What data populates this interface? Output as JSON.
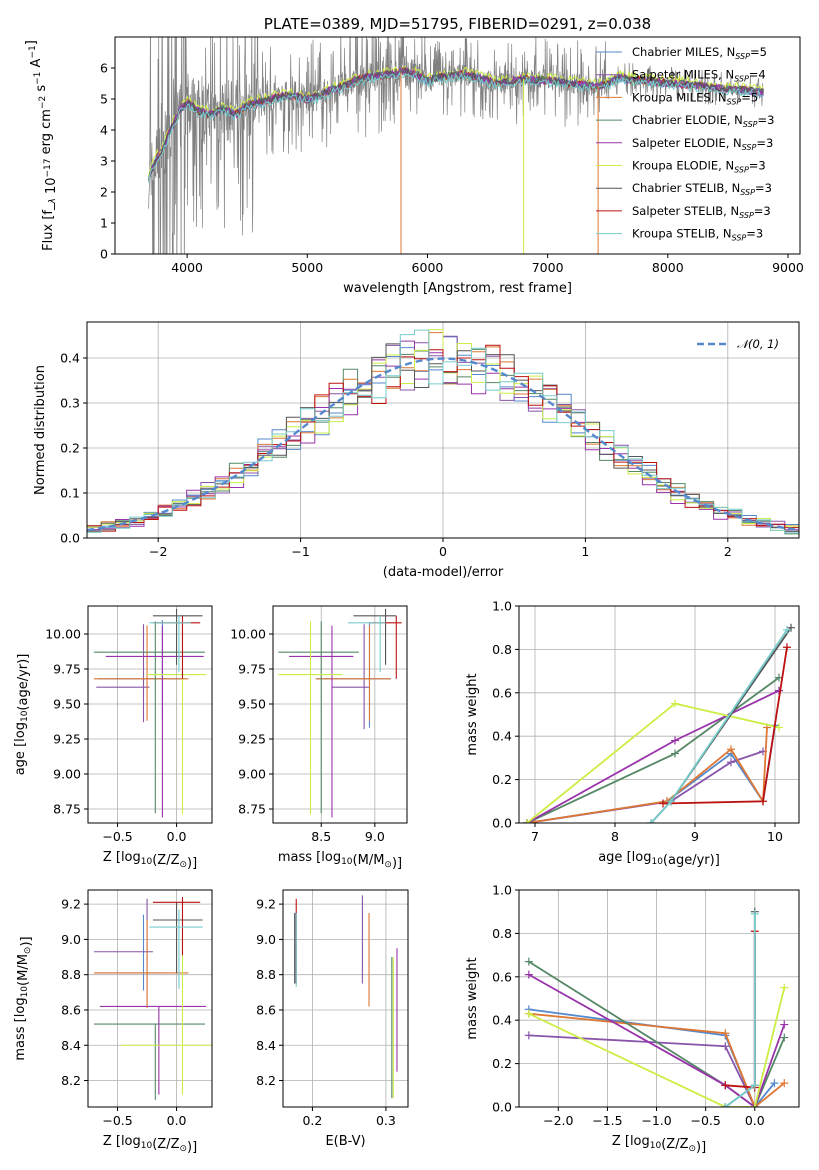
{
  "colors": [
    "#5588cc",
    "#8855aa",
    "#dd7733",
    "#558866",
    "#9933aa",
    "#ccee44",
    "#555555",
    "#bb1111",
    "#77cccc"
  ],
  "model_names": [
    "Chabrier MILES, N_SSP=5",
    "Salpeter MILES, N_SSP=4",
    "Kroupa MILES, N_SSP=5",
    "Chabrier ELODIE, N_SSP=3",
    "Salpeter ELODIE, N_SSP=3",
    "Kroupa ELODIE, N_SSP=3",
    "Chabrier STELIB, N_SSP=3",
    "Salpeter STELIB, N_SSP=3",
    "Kroupa STELIB, N_SSP=3"
  ],
  "chart_data": [
    {
      "id": "spectrum",
      "type": "line",
      "title": "PLATE=0389, MJD=51795, FIBERID=0291, z=0.038",
      "xlabel": "wavelength [Angstrom, rest frame]",
      "ylabel": "Flux [f_λ 10^-17 erg cm^-2 s^-1 A^-1]",
      "xlim": [
        3400,
        9100
      ],
      "ylim": [
        0,
        7
      ],
      "xticks": [
        4000,
        5000,
        6000,
        7000,
        8000,
        9000
      ],
      "yticks": [
        0,
        1,
        2,
        3,
        4,
        5,
        6
      ],
      "grid": false,
      "legend": "top-right",
      "data_color": "#808080",
      "continuum": {
        "x": [
          3680,
          3750,
          3800,
          3850,
          3900,
          3950,
          4000,
          4100,
          4200,
          4300,
          4400,
          4500,
          4600,
          4700,
          4800,
          4900,
          5000,
          5100,
          5200,
          5300,
          5400,
          5500,
          5600,
          5700,
          5800,
          5900,
          6000,
          6100,
          6200,
          6300,
          6400,
          6500,
          6600,
          6700,
          6800,
          6900,
          7000,
          7100,
          7200,
          7300,
          7400,
          7500,
          7600,
          7700,
          7800,
          7900,
          8000,
          8100,
          8200,
          8300,
          8400,
          8500,
          8600,
          8700,
          8800
        ],
        "y": [
          2.5,
          3.1,
          3.4,
          3.9,
          4.3,
          4.7,
          4.9,
          4.6,
          4.5,
          4.7,
          4.5,
          4.8,
          4.9,
          5.0,
          5.1,
          5.1,
          5.0,
          5.1,
          5.3,
          5.4,
          5.6,
          5.7,
          5.75,
          5.8,
          5.9,
          5.8,
          5.6,
          5.7,
          5.75,
          5.8,
          5.7,
          5.6,
          5.5,
          5.6,
          5.65,
          5.6,
          5.6,
          5.55,
          5.5,
          5.45,
          5.4,
          5.5,
          5.7,
          5.6,
          5.6,
          5.55,
          5.5,
          5.5,
          5.45,
          5.4,
          5.35,
          5.3,
          5.3,
          5.25,
          5.2
        ]
      }
    },
    {
      "id": "residuals",
      "type": "line",
      "xlabel": "(data-model)/error",
      "ylabel": "Normed distribution",
      "xlim": [
        -2.5,
        2.5
      ],
      "ylim": [
        0,
        0.48
      ],
      "xticks": [
        -2,
        -1,
        0,
        1,
        2
      ],
      "yticks": [
        0.0,
        0.1,
        0.2,
        0.3,
        0.4
      ],
      "grid": true,
      "legend": "top-right",
      "reference": {
        "name": "𝒩(0, 1)",
        "mu": 0,
        "sigma": 1,
        "color": "#5588cc"
      }
    },
    {
      "id": "age_vs_z",
      "type": "scatter",
      "xlabel": "Z [log10(Z/Z⊙)]",
      "ylabel": "age  [log10(age/yr)]",
      "xlim": [
        -0.75,
        0.3
      ],
      "ylim": [
        8.65,
        10.2
      ],
      "xticks": [
        -0.5,
        0.0
      ],
      "yticks": [
        8.75,
        9.0,
        9.25,
        9.5,
        9.75,
        10.0
      ],
      "grid": true,
      "errorbars": [
        {
          "c": 0,
          "x": -0.12,
          "xerr": [
            0.55,
            0.18
          ],
          "y": 9.68,
          "yerr": [
            0.3,
            0.42
          ]
        },
        {
          "c": 1,
          "x": -0.28,
          "xerr": [
            0.4,
            0.05
          ],
          "y": 9.62,
          "yerr": [
            0.25,
            0.45
          ]
        },
        {
          "c": 2,
          "x": -0.25,
          "xerr": [
            0.45,
            0.35
          ],
          "y": 9.68,
          "yerr": [
            0.3,
            0.38
          ]
        },
        {
          "c": 3,
          "x": -0.18,
          "xerr": [
            0.52,
            0.42
          ],
          "y": 9.87,
          "yerr": [
            1.15,
            0.22
          ]
        },
        {
          "c": 4,
          "x": -0.12,
          "xerr": [
            0.48,
            0.35
          ],
          "y": 9.84,
          "yerr": [
            1.15,
            0.22
          ]
        },
        {
          "c": 5,
          "x": 0.05,
          "xerr": [
            0.3,
            0.2
          ],
          "y": 9.71,
          "yerr": [
            1.0,
            0.38
          ]
        },
        {
          "c": 6,
          "x": 0.0,
          "xerr": [
            0.2,
            0.22
          ],
          "y": 10.13,
          "yerr": [
            0.35,
            0.05
          ]
        },
        {
          "c": 7,
          "x": 0.05,
          "xerr": [
            0.25,
            0.15
          ],
          "y": 10.08,
          "yerr": [
            0.4,
            0.05
          ]
        },
        {
          "c": 8,
          "x": 0.02,
          "xerr": [
            0.25,
            0.1
          ],
          "y": 10.08,
          "yerr": [
            0.35,
            0.05
          ]
        }
      ]
    },
    {
      "id": "age_vs_mass",
      "type": "scatter",
      "xlabel": "mass [log10(M/M⊙)]",
      "ylabel": "",
      "xlim": [
        8.05,
        9.3
      ],
      "ylim": [
        8.65,
        10.2
      ],
      "xticks": [
        8.5,
        9.0
      ],
      "yticks": [
        8.75,
        9.0,
        9.25,
        9.5,
        9.75,
        10.0
      ],
      "grid": true,
      "errorbars": [
        {
          "c": 0,
          "x": 8.95,
          "xerr": [
            0.5,
            0.2
          ],
          "y": 9.68,
          "yerr": [
            0.35,
            0.4
          ]
        },
        {
          "c": 1,
          "x": 8.9,
          "xerr": [
            0.3,
            0.05
          ],
          "y": 9.62,
          "yerr": [
            0.3,
            0.45
          ]
        },
        {
          "c": 2,
          "x": 8.95,
          "xerr": [
            0.5,
            0.2
          ],
          "y": 9.68,
          "yerr": [
            0.3,
            0.38
          ]
        },
        {
          "c": 3,
          "x": 8.5,
          "xerr": [
            0.4,
            0.35
          ],
          "y": 9.87,
          "yerr": [
            1.15,
            0.22
          ]
        },
        {
          "c": 4,
          "x": 8.6,
          "xerr": [
            0.4,
            0.2
          ],
          "y": 9.84,
          "yerr": [
            1.15,
            0.22
          ]
        },
        {
          "c": 5,
          "x": 8.4,
          "xerr": [
            0.3,
            0.3
          ],
          "y": 9.71,
          "yerr": [
            1.0,
            0.38
          ]
        },
        {
          "c": 6,
          "x": 9.1,
          "xerr": [
            0.3,
            0.1
          ],
          "y": 10.13,
          "yerr": [
            0.35,
            0.05
          ]
        },
        {
          "c": 7,
          "x": 9.2,
          "xerr": [
            0.25,
            0.05
          ],
          "y": 10.08,
          "yerr": [
            0.4,
            0.05
          ]
        },
        {
          "c": 8,
          "x": 9.05,
          "xerr": [
            0.3,
            0.05
          ],
          "y": 10.08,
          "yerr": [
            0.35,
            0.05
          ]
        }
      ]
    },
    {
      "id": "weight_vs_age",
      "type": "line",
      "xlabel": "age  [log10(age/yr)]",
      "ylabel": "mass weight",
      "xlim": [
        6.8,
        10.3
      ],
      "ylim": [
        0,
        1
      ],
      "xticks": [
        7,
        8,
        9,
        10
      ],
      "yticks": [
        0.0,
        0.2,
        0.4,
        0.6,
        0.8,
        1.0
      ],
      "grid": true,
      "series": [
        {
          "c": 0,
          "x": [
            6.9,
            8.65,
            9.45,
            9.85,
            10.0
          ],
          "y": [
            0.0,
            0.1,
            0.32,
            0.1,
            0.45
          ]
        },
        {
          "c": 1,
          "x": [
            6.9,
            8.7,
            9.45,
            9.85
          ],
          "y": [
            0.0,
            0.1,
            0.28,
            0.33
          ]
        },
        {
          "c": 2,
          "x": [
            6.9,
            8.65,
            9.45,
            9.85,
            9.9
          ],
          "y": [
            0.0,
            0.1,
            0.34,
            0.1,
            0.44
          ]
        },
        {
          "c": 3,
          "x": [
            6.9,
            8.75,
            10.05
          ],
          "y": [
            0.0,
            0.32,
            0.67
          ]
        },
        {
          "c": 4,
          "x": [
            6.9,
            8.75,
            10.05
          ],
          "y": [
            0.0,
            0.38,
            0.61
          ]
        },
        {
          "c": 5,
          "x": [
            6.9,
            8.75,
            10.05
          ],
          "y": [
            0.0,
            0.55,
            0.44
          ]
        },
        {
          "c": 6,
          "x": [
            8.45,
            8.7,
            10.2
          ],
          "y": [
            0.0,
            0.1,
            0.9
          ]
        },
        {
          "c": 7,
          "x": [
            8.6,
            9.85,
            10.15
          ],
          "y": [
            0.09,
            0.1,
            0.81
          ]
        },
        {
          "c": 8,
          "x": [
            8.45,
            8.7,
            10.15
          ],
          "y": [
            0.0,
            0.1,
            0.89
          ]
        }
      ]
    },
    {
      "id": "mass_vs_z",
      "type": "scatter",
      "xlabel": "Z [log10(Z/Z⊙)]",
      "ylabel": "mass [log10(M/M⊙)]",
      "xlim": [
        -0.75,
        0.3
      ],
      "ylim": [
        8.05,
        9.28
      ],
      "xticks": [
        -0.5,
        0.0
      ],
      "yticks": [
        8.2,
        8.4,
        8.6,
        8.8,
        9.0,
        9.2
      ],
      "grid": true,
      "errorbars": [
        {
          "c": 0,
          "x": -0.28,
          "xerr": [
            0.4,
            0.2
          ],
          "y": 8.81,
          "yerr": [
            0.1,
            0.33
          ]
        },
        {
          "c": 1,
          "x": -0.25,
          "xerr": [
            0.45,
            0.05
          ],
          "y": 8.93,
          "yerr": [
            0.3,
            0.3
          ]
        },
        {
          "c": 2,
          "x": -0.25,
          "xerr": [
            0.45,
            0.35
          ],
          "y": 8.81,
          "yerr": [
            0.2,
            0.3
          ]
        },
        {
          "c": 3,
          "x": -0.18,
          "xerr": [
            0.52,
            0.42
          ],
          "y": 8.52,
          "yerr": [
            0.43,
            0.0
          ]
        },
        {
          "c": 4,
          "x": -0.15,
          "xerr": [
            0.5,
            0.4
          ],
          "y": 8.62,
          "yerr": [
            0.5,
            0.0
          ]
        },
        {
          "c": 5,
          "x": 0.05,
          "xerr": [
            0.52,
            0.3
          ],
          "y": 8.4,
          "yerr": [
            0.28,
            0.6
          ]
        },
        {
          "c": 6,
          "x": 0.0,
          "xerr": [
            0.2,
            0.22
          ],
          "y": 9.11,
          "yerr": [
            0.3,
            0.1
          ]
        },
        {
          "c": 7,
          "x": 0.05,
          "xerr": [
            0.25,
            0.15
          ],
          "y": 9.21,
          "yerr": [
            0.3,
            0.03
          ]
        },
        {
          "c": 8,
          "x": 0.02,
          "xerr": [
            0.25,
            0.2
          ],
          "y": 9.07,
          "yerr": [
            0.35,
            0.1
          ]
        }
      ]
    },
    {
      "id": "mass_vs_ebv",
      "type": "scatter",
      "xlabel": "E(B-V)",
      "ylabel": "",
      "xlim": [
        0.16,
        0.33
      ],
      "ylim": [
        8.05,
        9.28
      ],
      "xticks": [
        0.2,
        0.3
      ],
      "yticks": [
        8.2,
        8.4,
        8.6,
        8.8,
        9.0,
        9.2
      ],
      "grid": true,
      "errorbars": [
        {
          "c": 0,
          "x": 0.176,
          "xerr": [
            0,
            0
          ],
          "y": 8.95,
          "yerr": [
            0.2,
            0.2
          ]
        },
        {
          "c": 1,
          "x": 0.268,
          "xerr": [
            0,
            0
          ],
          "y": 9.0,
          "yerr": [
            0.25,
            0.25
          ]
        },
        {
          "c": 2,
          "x": 0.277,
          "xerr": [
            0,
            0
          ],
          "y": 8.9,
          "yerr": [
            0.28,
            0.25
          ]
        },
        {
          "c": 3,
          "x": 0.308,
          "xerr": [
            0,
            0
          ],
          "y": 8.5,
          "yerr": [
            0.4,
            0.4
          ]
        },
        {
          "c": 4,
          "x": 0.315,
          "xerr": [
            0,
            0
          ],
          "y": 8.6,
          "yerr": [
            0.35,
            0.35
          ]
        },
        {
          "c": 5,
          "x": 0.31,
          "xerr": [
            0,
            0
          ],
          "y": 8.4,
          "yerr": [
            0.3,
            0.5
          ]
        },
        {
          "c": 6,
          "x": 0.176,
          "xerr": [
            0,
            0
          ],
          "y": 9.05,
          "yerr": [
            0.3,
            0.1
          ]
        },
        {
          "c": 7,
          "x": 0.178,
          "xerr": [
            0,
            0
          ],
          "y": 9.05,
          "yerr": [
            0.3,
            0.18
          ]
        },
        {
          "c": 8,
          "x": 0.178,
          "xerr": [
            0,
            0
          ],
          "y": 9.0,
          "yerr": [
            0.27,
            0.15
          ]
        }
      ]
    },
    {
      "id": "weight_vs_z",
      "type": "line",
      "xlabel": "Z [log10(Z/Z⊙)]",
      "ylabel": "mass weight",
      "xlim": [
        -2.4,
        0.45
      ],
      "ylim": [
        0,
        1
      ],
      "xticks": [
        -2.0,
        -1.5,
        -1.0,
        -0.5,
        0.0
      ],
      "yticks": [
        0.0,
        0.2,
        0.4,
        0.6,
        0.8,
        1.0
      ],
      "grid": true,
      "series": [
        {
          "c": 0,
          "x": [
            -2.3,
            -0.3,
            0.0,
            0.2
          ],
          "y": [
            0.45,
            0.33,
            0.0,
            0.11
          ]
        },
        {
          "c": 1,
          "x": [
            -2.3,
            -0.3,
            0.0
          ],
          "y": [
            0.33,
            0.28,
            0.0
          ]
        },
        {
          "c": 2,
          "x": [
            -2.3,
            -0.3,
            0.0,
            0.3
          ],
          "y": [
            0.43,
            0.34,
            0.0,
            0.11
          ]
        },
        {
          "c": 3,
          "x": [
            -2.3,
            -0.3,
            0.0,
            0.3
          ],
          "y": [
            0.67,
            0.1,
            0.0,
            0.32
          ]
        },
        {
          "c": 4,
          "x": [
            -2.3,
            -0.3,
            0.0,
            0.3
          ],
          "y": [
            0.61,
            0.1,
            0.0,
            0.38
          ]
        },
        {
          "c": 5,
          "x": [
            -2.3,
            -0.3,
            0.0,
            0.3
          ],
          "y": [
            0.43,
            0.0,
            0.0,
            0.55
          ]
        },
        {
          "c": 6,
          "x": [
            -0.3,
            0.0,
            0.0
          ],
          "y": [
            0.0,
            0.1,
            0.9
          ]
        },
        {
          "c": 7,
          "x": [
            -0.3,
            0.0,
            0.0
          ],
          "y": [
            0.1,
            0.09,
            0.81
          ]
        },
        {
          "c": 8,
          "x": [
            -0.3,
            0.0,
            0.0
          ],
          "y": [
            0.0,
            0.1,
            0.89
          ]
        }
      ]
    }
  ]
}
